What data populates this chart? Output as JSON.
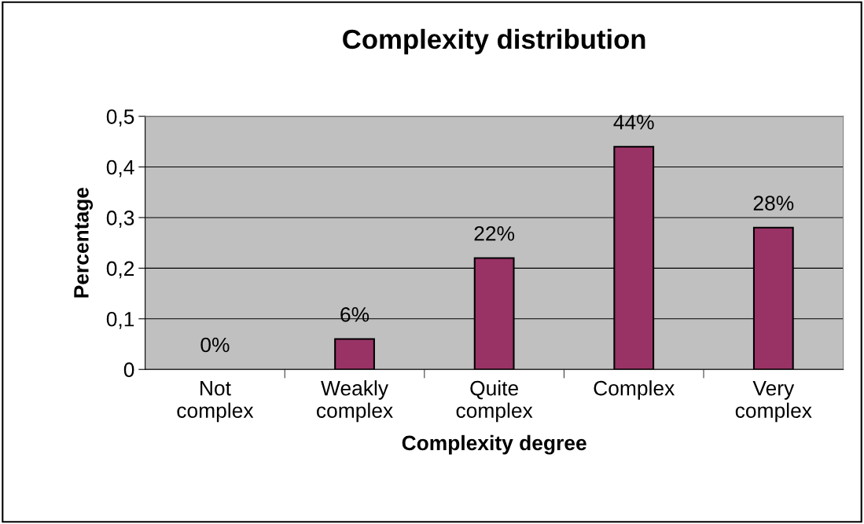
{
  "chart_data": {
    "type": "bar",
    "title": "Complexity distribution",
    "xlabel": "Complexity degree",
    "ylabel": "Percentage",
    "categories": [
      "Not\ncomplex",
      "Weakly\ncomplex",
      "Quite\ncomplex",
      "Complex",
      "Very\ncomplex"
    ],
    "values": [
      0,
      0.06,
      0.22,
      0.44,
      0.28
    ],
    "color": "#993366",
    "value_labels": [
      "0%",
      "6%",
      "22%",
      "44%",
      "28%"
    ],
    "ylim": [
      0,
      0.5
    ],
    "yticks": [
      0,
      {
        "value": 0.1,
        "label": "0,1"
      },
      {
        "value": 0.2,
        "label": "0,2"
      },
      {
        "value": 0.3,
        "label": "0,3"
      },
      {
        "value": 0.4,
        "label": "0,4"
      },
      {
        "value": 0.5,
        "label": "0,5"
      }
    ],
    "grid": "y",
    "legend": false
  }
}
